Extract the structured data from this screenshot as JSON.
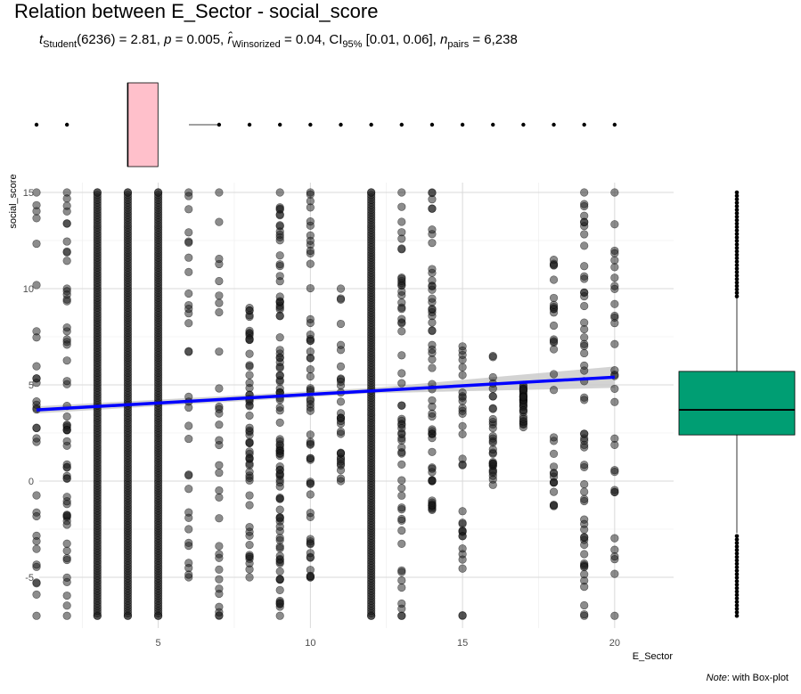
{
  "title": "Relation between E_Sector - social_score",
  "subtitle": {
    "t_label": "t",
    "t_sub": "Student",
    "t_value": "(6236) = 2.81, ",
    "p_label": "p",
    "p_value": " = 0.005, ",
    "r_label": "r̂",
    "r_sub": "Winsorized",
    "r_value": " = 0.04, CI",
    "ci_sub": "95%",
    "ci_value": " [0.01, 0.06], ",
    "n_label": "n",
    "n_sub": "pairs",
    "n_value": " = 6,238"
  },
  "caption": {
    "note_label": "Note",
    "note_text": ": with Box-plot"
  },
  "colors": {
    "points": "#1a1a1a",
    "regression_line": "#0000ff",
    "confidence_band": "#c8c8c8",
    "x_boxplot_fill": "#ffc0cb",
    "y_boxplot_fill": "#009e73",
    "grid": "#d9d9d9"
  },
  "chart_data": {
    "type": "scatter",
    "title": "Relation between E_Sector - social_score",
    "xlabel": "E_Sector",
    "ylabel": "social_score",
    "xlim": [
      0.5,
      21
    ],
    "ylim": [
      -7.7,
      16
    ],
    "x_ticks": [
      5,
      10,
      15,
      20
    ],
    "y_ticks": [
      -5,
      0,
      5,
      10,
      15
    ],
    "grid": true,
    "n_pairs": 6238,
    "x_values": [
      1,
      2,
      3,
      4,
      5,
      6,
      7,
      8,
      9,
      10,
      11,
      12,
      13,
      14,
      15,
      16,
      17,
      18,
      19,
      20
    ],
    "columns": [
      {
        "x": 1,
        "ymin": -7,
        "ymax": 15,
        "density": "low"
      },
      {
        "x": 2,
        "ymin": -7,
        "ymax": 15,
        "density": "medium"
      },
      {
        "x": 3,
        "ymin": -7,
        "ymax": 15,
        "density": "very high"
      },
      {
        "x": 4,
        "ymin": -7,
        "ymax": 15,
        "density": "very high"
      },
      {
        "x": 5,
        "ymin": -7,
        "ymax": 15,
        "density": "very high"
      },
      {
        "x": 6,
        "ymin": -5,
        "ymax": 15,
        "density": "low"
      },
      {
        "x": 7,
        "ymin": -7,
        "ymax": 15,
        "density": "low"
      },
      {
        "x": 8,
        "ymin": -5,
        "ymax": 9,
        "density": "medium"
      },
      {
        "x": 9,
        "ymin": -7,
        "ymax": 15,
        "density": "high"
      },
      {
        "x": 10,
        "ymin": -5,
        "ymax": 15,
        "density": "medium"
      },
      {
        "x": 11,
        "ymin": 0,
        "ymax": 10,
        "density": "low"
      },
      {
        "x": 12,
        "ymin": -7,
        "ymax": 15,
        "density": "very high"
      },
      {
        "x": 13,
        "ymin": -7,
        "ymax": 15,
        "density": "medium"
      },
      {
        "x": 14,
        "ymin": -1.5,
        "ymax": 15,
        "density": "medium"
      },
      {
        "x": 15,
        "ymin": -7,
        "ymax": 7,
        "density": "low"
      },
      {
        "x": 16,
        "ymin": -0.2,
        "ymax": 6.5,
        "density": "low"
      },
      {
        "x": 17,
        "ymin": 2.8,
        "ymax": 5,
        "density": "low"
      },
      {
        "x": 18,
        "ymin": -1.3,
        "ymax": 11.5,
        "density": "low"
      },
      {
        "x": 19,
        "ymin": -7,
        "ymax": 15,
        "density": "medium"
      },
      {
        "x": 20,
        "ymin": -7,
        "ymax": 15,
        "density": "low"
      }
    ],
    "regression": {
      "x": [
        1,
        20
      ],
      "y": [
        3.7,
        5.4
      ]
    },
    "x_boxplot": {
      "q1": 4,
      "median": 4,
      "q3": 5,
      "whisker_low": 2,
      "whisker_high": 6,
      "outliers": [
        1,
        2,
        7,
        8,
        9,
        10,
        11,
        12,
        13,
        14,
        15,
        16,
        17,
        18,
        19,
        20
      ]
    },
    "y_boxplot": {
      "q1": 2.4,
      "median": 3.7,
      "q3": 5.7,
      "whisker_low": -2.7,
      "whisker_high": 9.6,
      "outliers_range": [
        [
          -7,
          -2.7
        ],
        [
          9.6,
          15
        ]
      ]
    }
  }
}
